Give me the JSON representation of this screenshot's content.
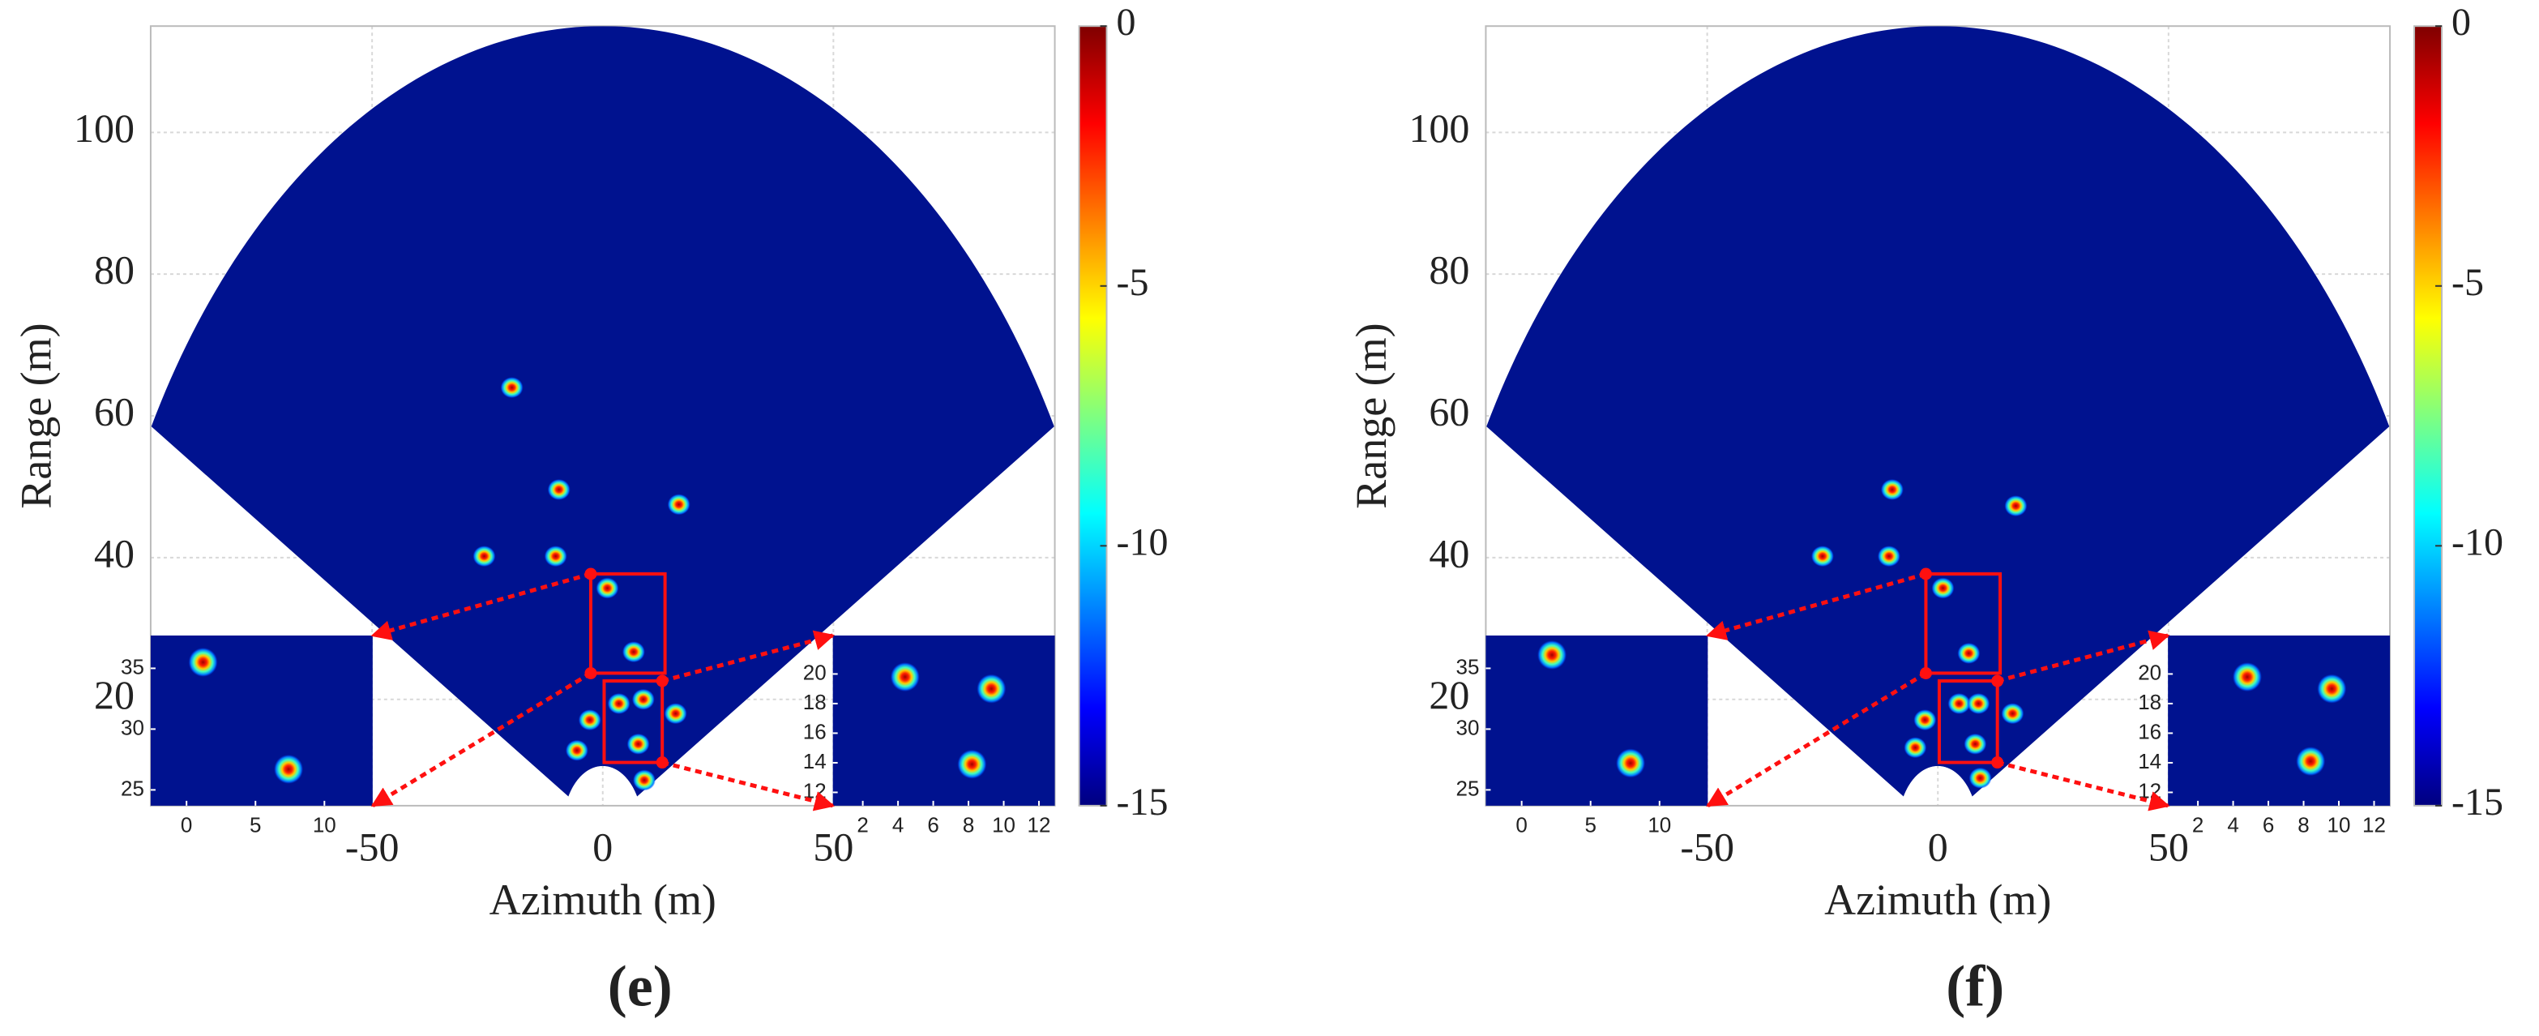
{
  "chart_data": [
    {
      "type": "heatmap",
      "title": "(e)",
      "xlabel": "Azimuth (m)",
      "ylabel": "Range (m)",
      "xlim": [
        -98,
        98
      ],
      "ylim": [
        5,
        115
      ],
      "xticks": [
        -50,
        0,
        50
      ],
      "yticks": [
        20,
        40,
        60,
        80,
        100
      ],
      "grid": true,
      "color": "#00128f",
      "colormap": "jet",
      "clim": [
        -15,
        0
      ],
      "cticks": [
        0,
        -5,
        -10,
        -15
      ],
      "x": [
        -9.5,
        -25.7,
        -10.2,
        16.5,
        1,
        6.7,
        -2.8,
        3.5,
        8.8,
        7.7,
        15.8,
        -5.6,
        9,
        -19.7
      ],
      "y": [
        49.6,
        40.2,
        40.2,
        47.5,
        35.7,
        26.7,
        17.1,
        19.4,
        20,
        13.7,
        18,
        12.8,
        8.6,
        64
      ],
      "insets": [
        {
          "side": "left",
          "xlim": [
            -2.6,
            13.5
          ],
          "ylim": [
            23.7,
            37.7
          ],
          "xticks": [
            0,
            5,
            10
          ],
          "yticks": [
            25,
            30,
            35
          ],
          "x": [
            1.2,
            7.4
          ],
          "y": [
            35.5,
            26.7
          ]
        },
        {
          "side": "right",
          "xlim": [
            0.3,
            12.9
          ],
          "ylim": [
            11.1,
            22.6
          ],
          "xticks": [
            2,
            4,
            6,
            8,
            10,
            12
          ],
          "yticks": [
            12,
            14,
            16,
            18,
            20
          ],
          "x": [
            4.4,
            9.3,
            8.2
          ],
          "y": [
            19.8,
            19,
            13.9
          ]
        }
      ]
    },
    {
      "type": "heatmap",
      "title": "(f)",
      "xlabel": "Azimuth (m)",
      "ylabel": "Range (m)",
      "xlim": [
        -98,
        98
      ],
      "ylim": [
        5,
        115
      ],
      "xticks": [
        -50,
        0,
        50
      ],
      "yticks": [
        20,
        40,
        60,
        80,
        100
      ],
      "grid": true,
      "color": "#00128f",
      "colormap": "jet",
      "clim": [
        -15,
        0
      ],
      "cticks": [
        0,
        -5,
        -10,
        -15
      ],
      "x": [
        -9.9,
        -25,
        -10.6,
        16.9,
        1.1,
        6.7,
        -2.8,
        4.6,
        8.8,
        8.1,
        16.2,
        -4.9,
        9.2
      ],
      "y": [
        49.6,
        40.2,
        40.2,
        47.3,
        35.7,
        26.5,
        17.1,
        19.4,
        19.4,
        13.7,
        18,
        13.2,
        8.9
      ],
      "insets": [
        {
          "side": "left",
          "xlim": [
            -2.6,
            13.5
          ],
          "ylim": [
            23.7,
            37.7
          ],
          "xticks": [
            0,
            5,
            10
          ],
          "yticks": [
            25,
            30,
            35
          ],
          "x": [
            2.2,
            7.9
          ],
          "y": [
            36.1,
            27.2
          ]
        },
        {
          "side": "right",
          "xlim": [
            0.3,
            12.9
          ],
          "ylim": [
            11.1,
            22.6
          ],
          "xticks": [
            2,
            4,
            6,
            8,
            10,
            12
          ],
          "yticks": [
            12,
            14,
            16,
            18,
            20
          ],
          "x": [
            4.8,
            9.6,
            8.4
          ],
          "y": [
            19.8,
            19,
            14.1
          ]
        }
      ]
    }
  ]
}
